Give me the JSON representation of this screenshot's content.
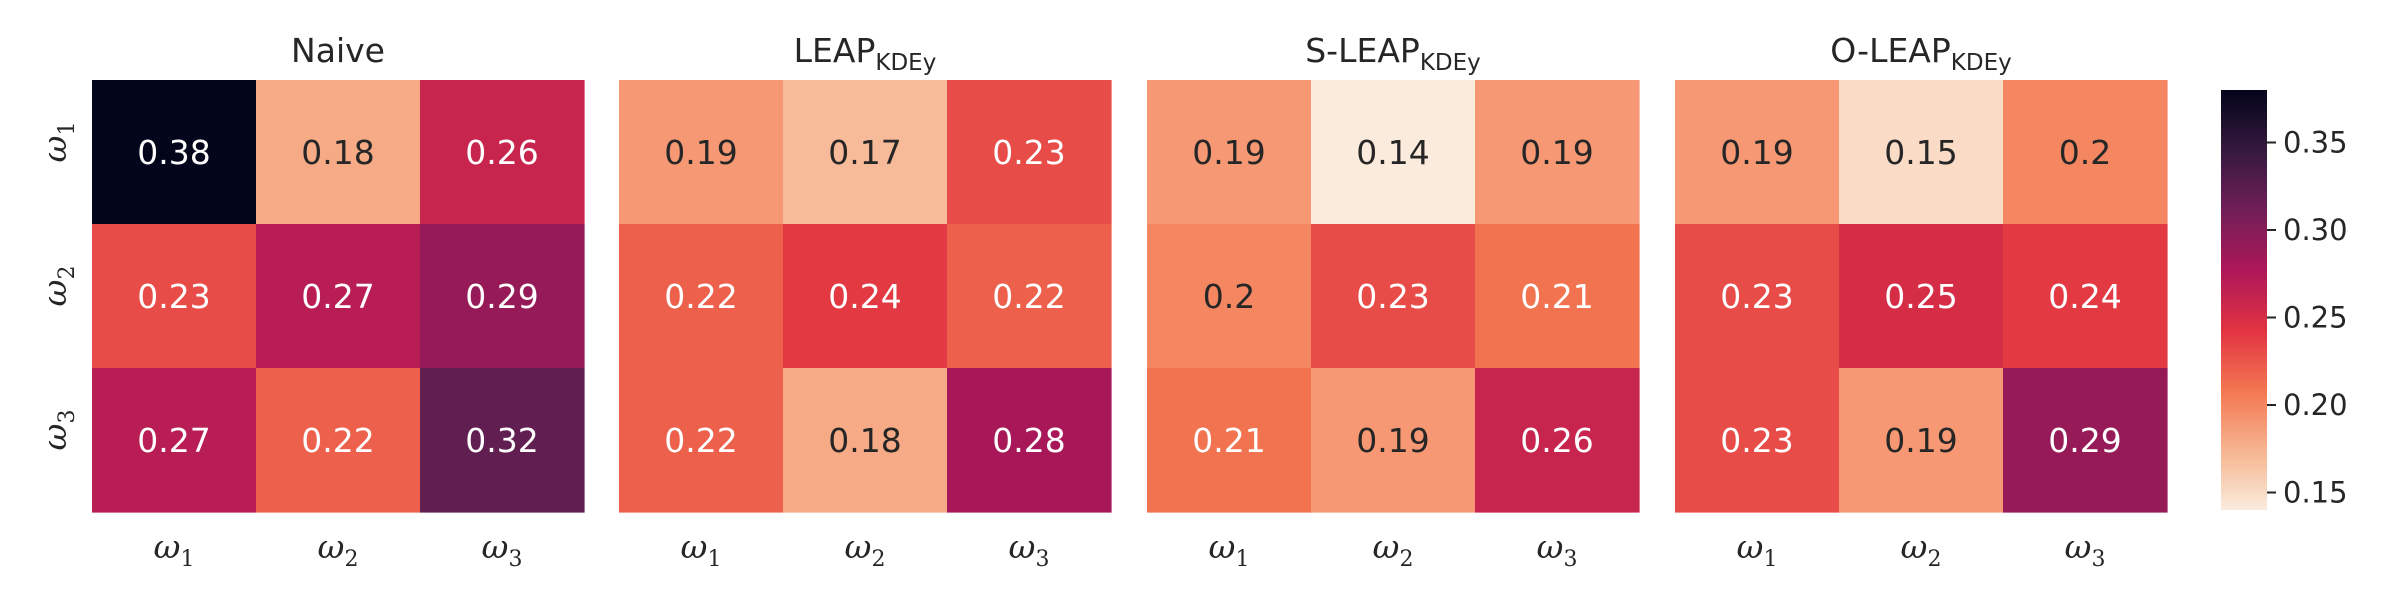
{
  "chart_data": {
    "type": "heatmap",
    "color_scale": {
      "min": 0.14,
      "max": 0.38,
      "ticks": [
        "0.15",
        "0.20",
        "0.25",
        "0.30",
        "0.35"
      ],
      "tick_values": [
        0.15,
        0.2,
        0.25,
        0.3,
        0.35
      ],
      "colormap": "rocket_r",
      "stops": [
        "#faebdd",
        "#f6b48f",
        "#f37651",
        "#e13342",
        "#ad1759",
        "#701f57",
        "#35193e",
        "#03051a"
      ]
    },
    "row_labels": [
      {
        "base": "ω",
        "sub": "1"
      },
      {
        "base": "ω",
        "sub": "2"
      },
      {
        "base": "ω",
        "sub": "3"
      }
    ],
    "col_labels": [
      {
        "base": "ω",
        "sub": "1"
      },
      {
        "base": "ω",
        "sub": "2"
      },
      {
        "base": "ω",
        "sub": "3"
      }
    ],
    "panels": [
      {
        "title": "Naive",
        "title_sub": "",
        "values": [
          [
            0.38,
            0.18,
            0.26
          ],
          [
            0.23,
            0.27,
            0.29
          ],
          [
            0.27,
            0.22,
            0.32
          ]
        ],
        "labels": [
          [
            "0.38",
            "0.18",
            "0.26"
          ],
          [
            "0.23",
            "0.27",
            "0.29"
          ],
          [
            "0.27",
            "0.22",
            "0.32"
          ]
        ]
      },
      {
        "title": "LEAP",
        "title_sub": "KDEy",
        "values": [
          [
            0.19,
            0.17,
            0.23
          ],
          [
            0.22,
            0.24,
            0.22
          ],
          [
            0.22,
            0.18,
            0.28
          ]
        ],
        "labels": [
          [
            "0.19",
            "0.17",
            "0.23"
          ],
          [
            "0.22",
            "0.24",
            "0.22"
          ],
          [
            "0.22",
            "0.18",
            "0.28"
          ]
        ]
      },
      {
        "title": "S-LEAP",
        "title_sub": "KDEy",
        "values": [
          [
            0.19,
            0.14,
            0.19
          ],
          [
            0.2,
            0.23,
            0.21
          ],
          [
            0.21,
            0.19,
            0.26
          ]
        ],
        "labels": [
          [
            "0.19",
            "0.14",
            "0.19"
          ],
          [
            "0.2",
            "0.23",
            "0.21"
          ],
          [
            "0.21",
            "0.19",
            "0.26"
          ]
        ]
      },
      {
        "title": "O-LEAP",
        "title_sub": "KDEy",
        "values": [
          [
            0.19,
            0.15,
            0.2
          ],
          [
            0.23,
            0.25,
            0.24
          ],
          [
            0.23,
            0.19,
            0.29
          ]
        ],
        "labels": [
          [
            "0.19",
            "0.15",
            "0.2"
          ],
          [
            "0.23",
            "0.25",
            "0.24"
          ],
          [
            "0.23",
            "0.19",
            "0.29"
          ]
        ]
      }
    ]
  }
}
